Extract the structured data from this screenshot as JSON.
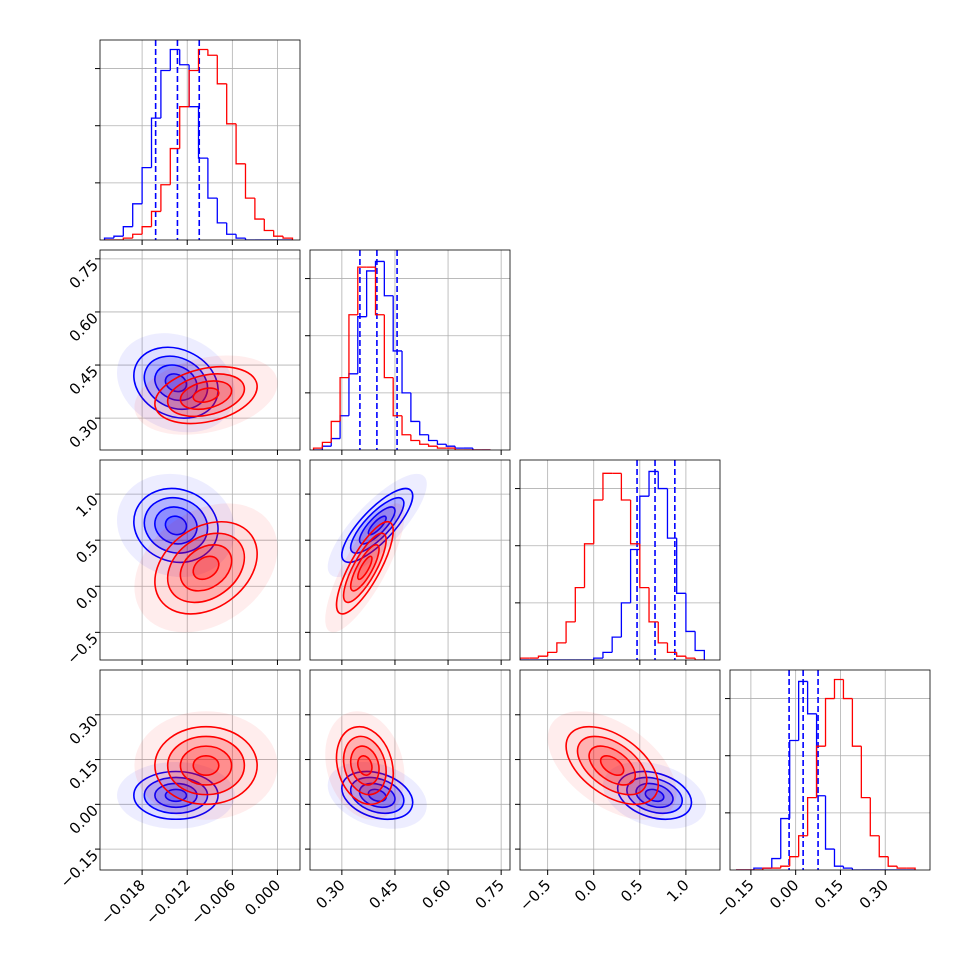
{
  "chart_data": {
    "type": "corner",
    "levels": [
      0.5,
      1,
      1.5,
      2
    ],
    "grid": true,
    "hist_ylim": [
      0,
      105
    ],
    "hist_yticks": [
      30,
      60,
      90
    ],
    "parameters": [
      {
        "lim": [
          -0.0236,
          0.003
        ],
        "ticks": [
          {
            "value": -0.018,
            "label": "−0.018"
          },
          {
            "value": -0.012,
            "label": "−0.012"
          },
          {
            "value": -0.006,
            "label": "−0.006"
          },
          {
            "value": 0,
            "label": "0.000"
          }
        ],
        "bins": [
          -0.023,
          -0.02175,
          -0.0205,
          -0.01925,
          -0.018,
          -0.01675,
          -0.0155,
          -0.01425,
          -0.013,
          -0.01175,
          -0.0105,
          -0.00925,
          -0.008,
          -0.00675,
          -0.0055,
          -0.00425,
          -0.003,
          -0.00175,
          -0.0005,
          0.00075,
          0.002
        ]
      },
      {
        "lim": [
          0.21,
          0.775
        ],
        "ticks": [
          {
            "value": 0.3,
            "label": "0.30"
          },
          {
            "value": 0.45,
            "label": "0.45"
          },
          {
            "value": 0.6,
            "label": "0.60"
          },
          {
            "value": 0.75,
            "label": "0.75"
          }
        ],
        "bins": [
          0.22,
          0.245,
          0.27,
          0.295,
          0.32,
          0.345,
          0.37,
          0.395,
          0.42,
          0.445,
          0.47,
          0.495,
          0.52,
          0.545,
          0.57,
          0.595,
          0.62,
          0.645,
          0.67,
          0.695,
          0.72
        ]
      },
      {
        "lim": [
          -0.8,
          1.37
        ],
        "ticks": [
          {
            "value": -0.5,
            "label": "−0.5"
          },
          {
            "value": 0,
            "label": "0.0"
          },
          {
            "value": 0.5,
            "label": "0.5"
          },
          {
            "value": 1,
            "label": "1.0"
          }
        ],
        "bins": [
          -0.8,
          -0.7,
          -0.6,
          -0.5,
          -0.4,
          -0.3,
          -0.2,
          -0.1,
          0,
          0.1,
          0.2,
          0.3,
          0.4,
          0.5,
          0.6,
          0.7,
          0.8,
          0.9,
          1.0,
          1.1,
          1.2
        ]
      },
      {
        "lim": [
          -0.22,
          0.45
        ],
        "ticks": [
          {
            "value": -0.15,
            "label": "−0.15"
          },
          {
            "value": 0,
            "label": "0.00"
          },
          {
            "value": 0.15,
            "label": "0.15"
          },
          {
            "value": 0.3,
            "label": "0.30"
          }
        ],
        "bins": [
          -0.2,
          -0.17,
          -0.14,
          -0.11,
          -0.08,
          -0.05,
          -0.02,
          0.01,
          0.04,
          0.07,
          0.1,
          0.13,
          0.16,
          0.19,
          0.22,
          0.25,
          0.28,
          0.31,
          0.34,
          0.37,
          0.4
        ]
      }
    ],
    "series": [
      {
        "color": "#0000ff",
        "hists": [
          [
            1,
            2,
            7,
            19,
            38,
            64,
            89,
            100,
            92,
            70,
            43,
            22,
            9,
            3,
            1,
            0,
            0,
            0,
            0,
            0
          ],
          [
            0,
            2,
            6,
            18,
            40,
            70,
            94,
            99,
            81,
            52,
            30,
            15,
            8,
            5,
            3,
            2,
            1,
            1,
            0,
            0
          ],
          [
            0,
            0,
            0,
            0,
            0,
            0,
            0,
            0,
            1,
            4,
            12,
            30,
            58,
            86,
            99,
            90,
            64,
            35,
            15,
            5
          ],
          [
            0,
            0,
            1,
            1,
            6,
            27,
            68,
            99,
            82,
            39,
            11,
            2,
            1,
            0,
            0,
            0,
            0,
            0,
            0,
            0
          ]
        ],
        "mean": [
          -0.0135,
          0.4,
          0.66,
          0.03
        ],
        "sd": [
          0.0028,
          0.05,
          0.2,
          0.04
        ],
        "corr": [
          [
            1,
            -0.2,
            -0.1,
            0
          ],
          [
            -0.2,
            1,
            0.8,
            -0.3
          ],
          [
            -0.1,
            0.8,
            1,
            -0.3
          ],
          [
            0,
            -0.3,
            -0.3,
            1
          ]
        ],
        "quantiles": [
          [
            -0.0162,
            -0.0133,
            -0.0104
          ],
          [
            0.351,
            0.399,
            0.456
          ],
          [
            0.47,
            0.665,
            0.88
          ],
          [
            -0.022,
            0.025,
            0.075
          ]
        ]
      },
      {
        "color": "#ff0000",
        "hists": [
          [
            0,
            0,
            1,
            3,
            7,
            15,
            29,
            48,
            70,
            89,
            100,
            97,
            82,
            61,
            40,
            22,
            11,
            5,
            2,
            1
          ],
          [
            1,
            4,
            15,
            38,
            71,
            96,
            96,
            71,
            38,
            18,
            8,
            5,
            3,
            2,
            1,
            1,
            0,
            0,
            0,
            0
          ],
          [
            1,
            1,
            2,
            4,
            9,
            20,
            38,
            61,
            84,
            98,
            98,
            84,
            61,
            38,
            20,
            9,
            4,
            2,
            1,
            0
          ],
          [
            0,
            0,
            0,
            1,
            1,
            2,
            7,
            18,
            38,
            65,
            90,
            100,
            90,
            65,
            38,
            18,
            7,
            2,
            1,
            1
          ]
        ],
        "mean": [
          -0.0095,
          0.365,
          0.2,
          0.13
        ],
        "sd": [
          0.0034,
          0.04,
          0.25,
          0.065
        ],
        "corr": [
          [
            1,
            0.3,
            0.3,
            0
          ],
          [
            0.3,
            1,
            0.8,
            -0.2
          ],
          [
            0.3,
            0.8,
            1,
            -0.5
          ],
          [
            0,
            -0.2,
            -0.5,
            1
          ]
        ]
      }
    ]
  }
}
